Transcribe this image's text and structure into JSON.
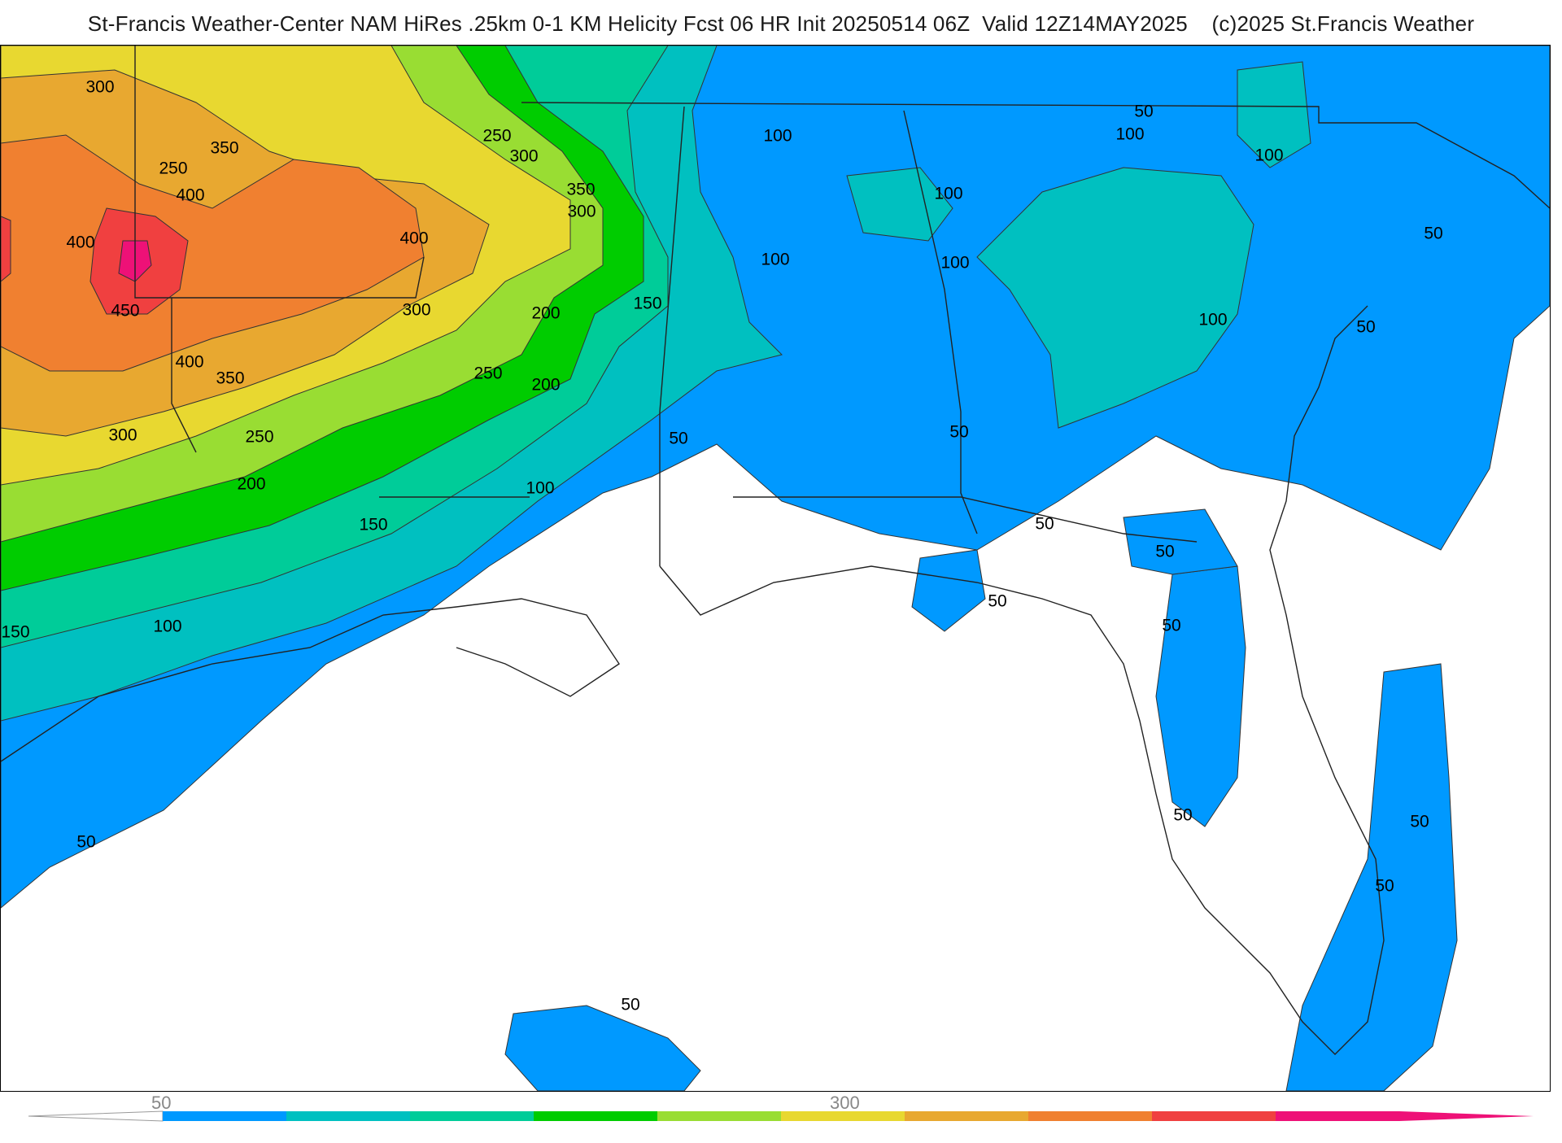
{
  "title": "St-Francis Weather-Center NAM HiRes .25km 0-1 KM Helicity Fcst 06 HR Init 20250514 06Z  Valid 12Z14MAY2025    (c)2025 St.Francis Weather",
  "colorbar": {
    "tick_labels": [
      "50",
      "300"
    ],
    "colors": [
      "#0099ff",
      "#00c0c0",
      "#00cc99",
      "#00cc00",
      "#99dd33",
      "#e8d830",
      "#e8a830",
      "#f08030",
      "#f04040",
      "#ee1177"
    ]
  },
  "contour_labels": [
    "300",
    "250",
    "350",
    "400",
    "400",
    "450",
    "400",
    "350",
    "300",
    "250",
    "200",
    "150",
    "100",
    "50",
    "150",
    "200",
    "250",
    "300",
    "350",
    "300",
    "400",
    "300",
    "250",
    "200",
    "150",
    "100",
    "50",
    "100",
    "100",
    "100",
    "100",
    "100",
    "100",
    "50",
    "50",
    "50",
    "50",
    "50",
    "50",
    "50",
    "50",
    "50",
    "50",
    "50",
    "50",
    "100"
  ],
  "contour_colors": {
    "50": "#0099ff",
    "100": "#00c0c0",
    "150": "#00cc99",
    "200": "#00cc00",
    "250": "#99dd33",
    "300": "#e8d830",
    "350": "#e8a830",
    "400": "#f08030",
    "450": "#f04040",
    "500": "#ee1177"
  }
}
